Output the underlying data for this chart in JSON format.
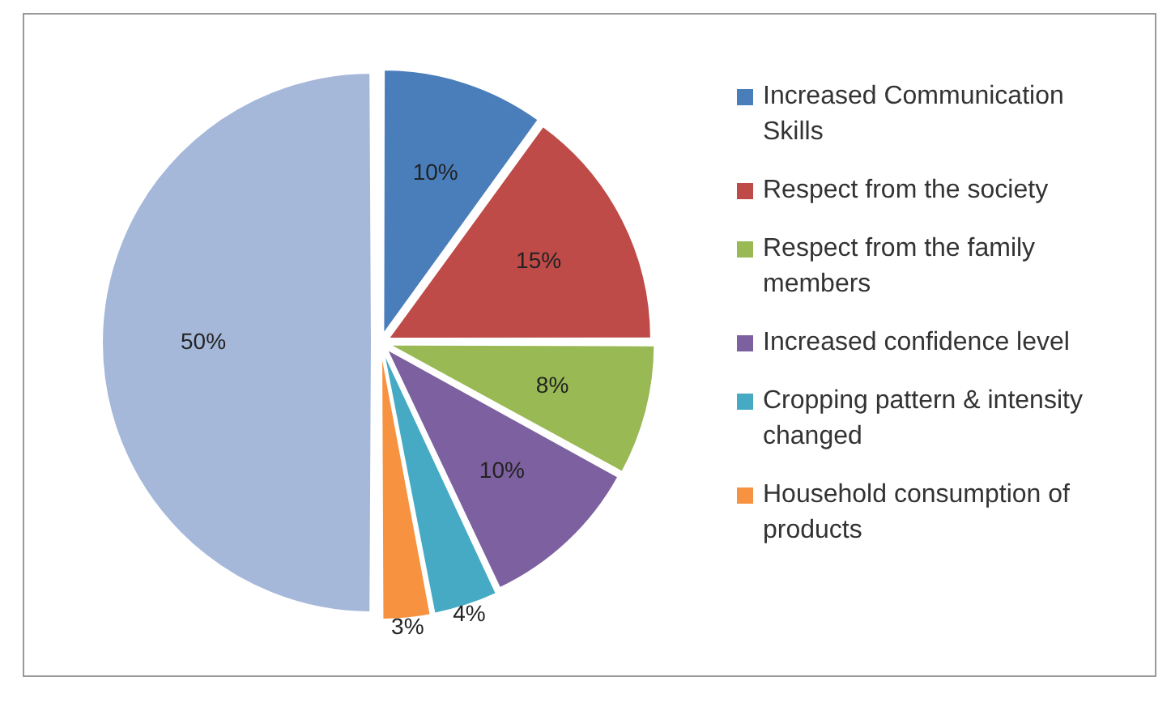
{
  "chart_data": {
    "type": "pie",
    "categories": [
      "Increased Communication Skills",
      "Respect from the society",
      "Respect from the family members",
      "Increased confidence level",
      "Cropping pattern & intensity changed",
      "Household consumption of products",
      null
    ],
    "values": [
      10,
      15,
      8,
      10,
      4,
      3,
      50
    ],
    "colors": [
      "#4a7ebb",
      "#be4b48",
      "#98b954",
      "#7d60a0",
      "#46aac5",
      "#f69240",
      "#a5b8d9"
    ],
    "value_labels": [
      "10%",
      "15%",
      "8%",
      "10%",
      "4%",
      "3%",
      "50%"
    ],
    "legend": "right"
  }
}
